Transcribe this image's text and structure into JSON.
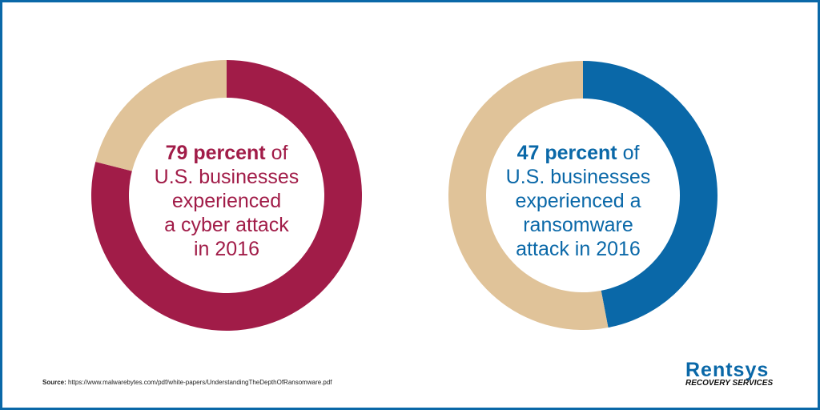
{
  "chart_data": [
    {
      "type": "pie",
      "variant": "donut",
      "values": [
        79,
        21
      ],
      "highlight_color": "#a11c48",
      "rest_color": "#e0c399",
      "label_bold": "79 percent",
      "label_rest": [
        " of",
        "U.S. businesses",
        "experienced",
        "a cyber attack",
        "in 2016"
      ]
    },
    {
      "type": "pie",
      "variant": "donut",
      "values": [
        47,
        53
      ],
      "highlight_color": "#0a68a8",
      "rest_color": "#e0c399",
      "label_bold": "47 percent",
      "label_rest": [
        " of",
        "U.S. businesses",
        "experienced a",
        "ransomware",
        "attack in 2016"
      ]
    }
  ],
  "source": {
    "label": "Source:",
    "url": "https://www.malwarebytes.com/pdf/white-papers/UnderstandingTheDepthOfRansomware.pdf"
  },
  "logo": {
    "line1": "Rentsys",
    "line2": "Recovery Services"
  },
  "colors": {
    "border": "#0a68a8"
  }
}
